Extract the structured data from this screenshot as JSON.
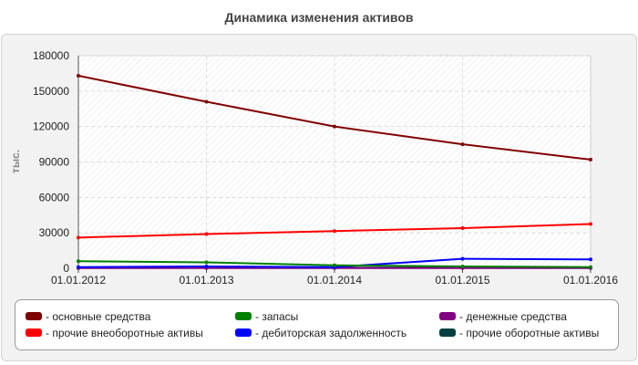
{
  "chart_data": {
    "type": "line",
    "title": "Динамика изменения активов",
    "ylabel": "тыс.",
    "xlabel": "",
    "categories": [
      "01.01.2012",
      "01.01.2013",
      "01.01.2014",
      "01.01.2015",
      "01.01.2016"
    ],
    "ylim": [
      0,
      180000
    ],
    "yticks": [
      0,
      30000,
      60000,
      90000,
      120000,
      150000,
      180000
    ],
    "grid": true,
    "legend_position": "bottom",
    "series": [
      {
        "name": "- основные средства",
        "color": "#800000",
        "values": [
          163000,
          141000,
          120000,
          105000,
          92000
        ]
      },
      {
        "name": "- прочие внеоборотные активы",
        "color": "#ff0000",
        "values": [
          26000,
          29000,
          31500,
          34000,
          37500
        ]
      },
      {
        "name": "- запасы",
        "color": "#008000",
        "values": [
          6000,
          5000,
          2500,
          1500,
          1000
        ]
      },
      {
        "name": "- дебиторская задолженность",
        "color": "#0000ff",
        "values": [
          1000,
          1500,
          1000,
          8000,
          7500
        ]
      },
      {
        "name": "- денежные средства",
        "color": "#800080",
        "values": [
          200,
          200,
          200,
          200,
          200
        ]
      },
      {
        "name": "- прочие оборотные активы",
        "color": "#004040",
        "values": [
          500,
          500,
          500,
          500,
          500
        ]
      }
    ]
  }
}
